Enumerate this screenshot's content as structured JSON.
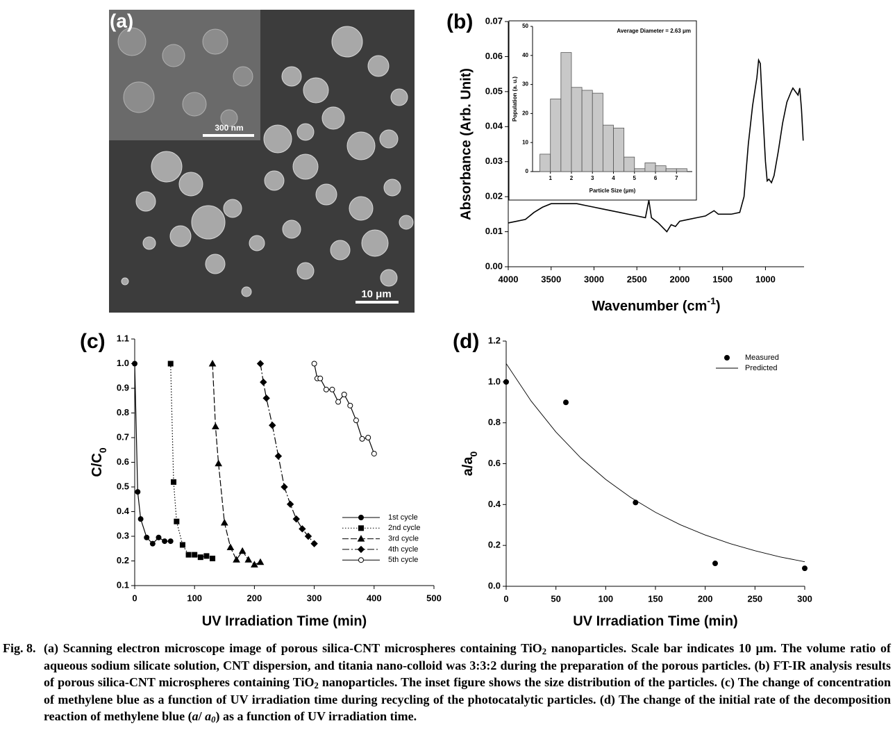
{
  "panel_a": {
    "label": "(a)",
    "inset_scale_bar": "300 nm",
    "scale_bar": "10 μm"
  },
  "chart_data": [
    {
      "type": "line",
      "panel_label": "(b)",
      "xlabel": [
        {
          "text": "Wavenumber (cm"
        },
        {
          "text": "-1",
          "style": "sup"
        },
        {
          "text": ")"
        }
      ],
      "ylabel": "Absorbance (Arb. Unit)",
      "xlim": [
        4000,
        550
      ],
      "xticks": [
        4000,
        3500,
        3000,
        2500,
        2000,
        1500,
        1000
      ],
      "ylim": [
        0,
        0.07
      ],
      "yticks": [
        {
          "value": 0,
          "label": "0.00"
        },
        0.01,
        0.02,
        0.03,
        0.04,
        0.05,
        0.06,
        0.07
      ],
      "color": "#000000",
      "x": [
        4000,
        3900,
        3800,
        3700,
        3600,
        3500,
        3400,
        3300,
        3200,
        3100,
        3000,
        2900,
        2800,
        2700,
        2600,
        2500,
        2400,
        2360,
        2330,
        2250,
        2150,
        2100,
        2050,
        2000,
        1900,
        1800,
        1700,
        1600,
        1550,
        1400,
        1300,
        1250,
        1200,
        1150,
        1100,
        1080,
        1060,
        1040,
        1000,
        980,
        960,
        930,
        900,
        850,
        800,
        750,
        700,
        680,
        650,
        620,
        600,
        580,
        560
      ],
      "values": [
        0.0125,
        0.013,
        0.0135,
        0.0155,
        0.017,
        0.018,
        0.018,
        0.018,
        0.018,
        0.0175,
        0.017,
        0.0165,
        0.016,
        0.0155,
        0.015,
        0.0145,
        0.014,
        0.019,
        0.014,
        0.0125,
        0.01,
        0.012,
        0.0115,
        0.013,
        0.0135,
        0.014,
        0.0145,
        0.016,
        0.015,
        0.015,
        0.0155,
        0.02,
        0.035,
        0.046,
        0.054,
        0.059,
        0.058,
        0.048,
        0.03,
        0.0245,
        0.025,
        0.024,
        0.026,
        0.033,
        0.041,
        0.047,
        0.05,
        0.051,
        0.05,
        0.049,
        0.051,
        0.045,
        0.036
      ]
    },
    {
      "type": "histogram",
      "xlabel": "Particle Size (μm)",
      "ylabel": "Population (a. u.)",
      "annotation": "Average Diameter = 2.63 μm",
      "xlim": [
        0.15,
        7.75
      ],
      "xticks": [
        1,
        2,
        3,
        4,
        5,
        6,
        7
      ],
      "ylim": [
        0,
        50
      ],
      "yticks": [
        0,
        10,
        20,
        30,
        40,
        50
      ],
      "color": "#c8c8c8",
      "bins": [
        0.5,
        1,
        1.5,
        2,
        2.5,
        3,
        3.5,
        4,
        4.5,
        5,
        5.5,
        6,
        6.5,
        7,
        7.5
      ],
      "values": [
        6,
        25,
        41,
        29,
        28,
        27,
        16,
        15,
        5,
        1,
        3,
        2,
        1,
        1
      ]
    },
    {
      "type": "line",
      "panel_label": "(c)",
      "xlabel": "UV Irradiation Time (min)",
      "ylabel": [
        {
          "text": "C/C"
        },
        {
          "text": "0",
          "style": "sub"
        }
      ],
      "xlim": [
        0,
        500
      ],
      "xticks": [
        0,
        100,
        200,
        300,
        400,
        500
      ],
      "ylim": [
        0.1,
        1.1
      ],
      "yticks": [
        0.1,
        0.2,
        0.3,
        0.4,
        0.5,
        0.6,
        0.7,
        0.8,
        0.9,
        {
          "value": 1,
          "label": "1.0"
        },
        1.1
      ],
      "legend": "lower right",
      "series": [
        {
          "name": "1st cycle",
          "color": "#000000",
          "marker": "circle",
          "filled": true,
          "dash": "solid",
          "x": [
            0,
            5,
            10,
            20,
            30,
            40,
            50,
            60
          ],
          "values": [
            1.0,
            0.48,
            0.37,
            0.295,
            0.27,
            0.295,
            0.28,
            0.28
          ]
        },
        {
          "name": "2nd cycle",
          "color": "#000000",
          "marker": "square",
          "filled": true,
          "dash": "dotted",
          "x": [
            60,
            65,
            70,
            80,
            90,
            100,
            110,
            120,
            130
          ],
          "values": [
            1.0,
            0.52,
            0.36,
            0.265,
            0.225,
            0.225,
            0.215,
            0.22,
            0.21
          ]
        },
        {
          "name": "3rd cycle",
          "color": "#000000",
          "marker": "triangle",
          "filled": true,
          "dash": "dashed",
          "x": [
            130,
            135,
            140,
            150,
            160,
            170,
            180,
            190,
            200,
            210
          ],
          "values": [
            1.0,
            0.745,
            0.595,
            0.355,
            0.255,
            0.205,
            0.24,
            0.205,
            0.185,
            0.195
          ]
        },
        {
          "name": "4th cycle",
          "color": "#000000",
          "marker": "diamond",
          "filled": true,
          "dash": "dashdot",
          "x": [
            210,
            215,
            220,
            230,
            240,
            250,
            260,
            270,
            280,
            290,
            300
          ],
          "values": [
            1.0,
            0.925,
            0.86,
            0.75,
            0.625,
            0.5,
            0.43,
            0.37,
            0.33,
            0.3,
            0.27
          ]
        },
        {
          "name": "5th cycle",
          "color": "#000000",
          "marker": "circle",
          "filled": false,
          "dash": "solid",
          "x": [
            300,
            305,
            310,
            320,
            330,
            340,
            350,
            360,
            370,
            380,
            390,
            400
          ],
          "values": [
            1.0,
            0.94,
            0.94,
            0.895,
            0.895,
            0.845,
            0.875,
            0.83,
            0.77,
            0.695,
            0.7,
            0.635
          ]
        }
      ]
    },
    {
      "type": "scatter",
      "panel_label": "(d)",
      "xlabel": "UV Irradiation Time (min)",
      "ylabel": [
        {
          "text": "a/a"
        },
        {
          "text": "0",
          "style": "sub"
        }
      ],
      "xlim": [
        0,
        300
      ],
      "xticks": [
        0,
        50,
        100,
        150,
        200,
        250,
        300
      ],
      "ylim": [
        0,
        1.2
      ],
      "yticks": [
        {
          "value": 0,
          "label": "0.0"
        },
        0.2,
        0.4,
        0.6,
        0.8,
        {
          "value": 1,
          "label": "1.0"
        },
        1.2
      ],
      "legend": "upper right",
      "series": [
        {
          "name": "Measured",
          "color": "#000000",
          "kind": "markers",
          "marker": "circle",
          "filled": true,
          "x": [
            0,
            60,
            130,
            210,
            300
          ],
          "values": [
            1.0,
            0.9,
            0.41,
            0.112,
            0.088
          ]
        },
        {
          "name": "Predicted",
          "color": "#000000",
          "kind": "line",
          "dash": "solid",
          "x": [
            0,
            25,
            50,
            75,
            100,
            125,
            150,
            175,
            200,
            225,
            250,
            275,
            300
          ],
          "values": [
            1.09,
            0.907,
            0.755,
            0.628,
            0.523,
            0.435,
            0.362,
            0.301,
            0.251,
            0.209,
            0.174,
            0.144,
            0.12
          ]
        }
      ]
    }
  ],
  "caption": {
    "label": "Fig. 8.",
    "runs": [
      {
        "text": "(a) Scanning electron microscope image of porous silica-CNT microspheres containing TiO"
      },
      {
        "text": "2",
        "style": "sub"
      },
      {
        "text": " nanoparticles. Scale bar indicates 10 μm. The volume ratio of aqueous sodium silicate solution, CNT dispersion, and titania nano-colloid was 3:3:2 during the preparation of the porous particles. (b) FT-IR analysis results of porous silica-CNT microspheres containing TiO"
      },
      {
        "text": "2",
        "style": "sub"
      },
      {
        "text": " nanoparticles. The inset figure shows the size distribution of the particles. (c) The change of concentration of methylene blue as a function of UV irradiation time during recycling of the photocatalytic particles. (d) The change of the initial rate of the decomposition reaction of methylene blue ("
      },
      {
        "text": "a",
        "style": "italic"
      },
      {
        "text": "/ "
      },
      {
        "text": "a",
        "style": "italic"
      },
      {
        "text": "0",
        "style": "italic-sub"
      },
      {
        "text": ") as a function of UV irradiation time."
      }
    ]
  }
}
